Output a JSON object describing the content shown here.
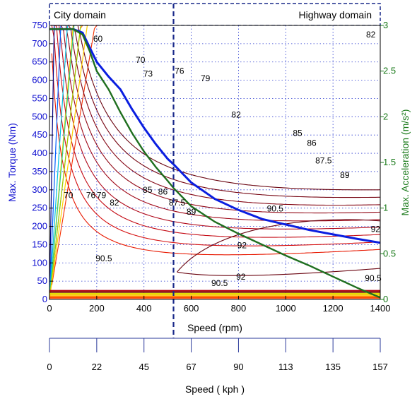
{
  "chart_data": {
    "type": "line",
    "domains": {
      "city": "City domain",
      "highway": "Highway domain",
      "boundary_rpm": 525
    },
    "x_axis": {
      "label": "Speed (rpm)",
      "range": [
        0,
        1400
      ],
      "ticks": [
        0,
        200,
        400,
        600,
        800,
        1000,
        1200,
        1400
      ]
    },
    "y_left": {
      "label": "Max. Torque (Nm)",
      "range": [
        0,
        750
      ],
      "ticks": [
        0,
        50,
        100,
        150,
        200,
        250,
        300,
        350,
        400,
        450,
        500,
        550,
        600,
        650,
        700,
        750
      ],
      "color": "#1010d0"
    },
    "y_right": {
      "label": "Max. Acceleration (m/s²)",
      "range": [
        0,
        3
      ],
      "ticks": [
        "0",
        "0.5",
        "1",
        "1.5",
        "2",
        "2.5",
        "3"
      ],
      "color": "#1a7a1a"
    },
    "kph_axis": {
      "label": "Speed ( kph )",
      "ticks": [
        "0",
        "22",
        "45",
        "67",
        "90",
        "113",
        "135",
        "157"
      ]
    },
    "grid": true,
    "series": [
      {
        "id": "torque",
        "color": "#0a1ee0",
        "x": [
          0,
          100,
          140,
          170,
          200,
          250,
          300,
          350,
          400,
          450,
          500,
          525,
          600,
          700,
          800,
          900,
          1000,
          1100,
          1200,
          1300,
          1400
        ],
        "y": [
          740,
          740,
          730,
          690,
          650,
          610,
          575,
          520,
          470,
          425,
          385,
          370,
          320,
          275,
          245,
          220,
          205,
          190,
          178,
          166,
          155
        ]
      },
      {
        "id": "acceleration",
        "color": "#1f6f1f",
        "x": [
          0,
          100,
          140,
          170,
          200,
          250,
          300,
          350,
          400,
          450,
          500,
          525,
          600,
          700,
          800,
          900,
          1000,
          1100,
          1200,
          1300,
          1400
        ],
        "y": [
          2.96,
          2.96,
          2.9,
          2.72,
          2.5,
          2.3,
          2.05,
          1.82,
          1.62,
          1.45,
          1.3,
          1.22,
          1.02,
          0.85,
          0.72,
          0.6,
          0.48,
          0.37,
          0.25,
          0.13,
          0.02
        ]
      }
    ],
    "efficiency_contours": [
      {
        "level": "60",
        "color": "#ffd000"
      },
      {
        "level": "70",
        "color": "#ff6a00"
      },
      {
        "level": "73",
        "color": "#f53000"
      },
      {
        "level": "76",
        "color": "#e81800"
      },
      {
        "level": "79",
        "color": "#d50e0e"
      },
      {
        "level": "82",
        "color": "#c40a14"
      },
      {
        "level": "85",
        "color": "#b0081a"
      },
      {
        "level": "86",
        "color": "#a00818"
      },
      {
        "level": "87.5",
        "color": "#920816"
      },
      {
        "level": "89",
        "color": "#840614"
      },
      {
        "level": "90.5",
        "color": "#760512"
      },
      {
        "level": "92",
        "color": "#6a0410"
      }
    ],
    "contour_labels": [
      {
        "text": "60",
        "x": 205,
        "y": 713
      },
      {
        "text": "70",
        "x": 385,
        "y": 655
      },
      {
        "text": "73",
        "x": 417,
        "y": 618
      },
      {
        "text": "76",
        "x": 550,
        "y": 625
      },
      {
        "text": "79",
        "x": 660,
        "y": 605
      },
      {
        "text": "82",
        "x": 1360,
        "y": 725
      },
      {
        "text": "82",
        "x": 790,
        "y": 505
      },
      {
        "text": "85",
        "x": 1050,
        "y": 455
      },
      {
        "text": "86",
        "x": 1110,
        "y": 428
      },
      {
        "text": "87.5",
        "x": 1160,
        "y": 380
      },
      {
        "text": "89",
        "x": 1250,
        "y": 340
      },
      {
        "text": "90.5",
        "x": 955,
        "y": 248
      },
      {
        "text": "92",
        "x": 1380,
        "y": 192
      },
      {
        "text": "92",
        "x": 815,
        "y": 148
      },
      {
        "text": "92",
        "x": 810,
        "y": 62
      },
      {
        "text": "90.5",
        "x": 1370,
        "y": 58
      },
      {
        "text": "90.5",
        "x": 720,
        "y": 44
      },
      {
        "text": "90.5",
        "x": 230,
        "y": 112
      },
      {
        "text": "89",
        "x": 600,
        "y": 240
      },
      {
        "text": "87.5",
        "x": 540,
        "y": 265
      },
      {
        "text": "86",
        "x": 480,
        "y": 295
      },
      {
        "text": "85",
        "x": 415,
        "y": 300
      },
      {
        "text": "82",
        "x": 275,
        "y": 265
      },
      {
        "text": "79",
        "x": 220,
        "y": 285
      },
      {
        "text": "76",
        "x": 175,
        "y": 285
      },
      {
        "text": "70",
        "x": 80,
        "y": 285
      }
    ]
  }
}
